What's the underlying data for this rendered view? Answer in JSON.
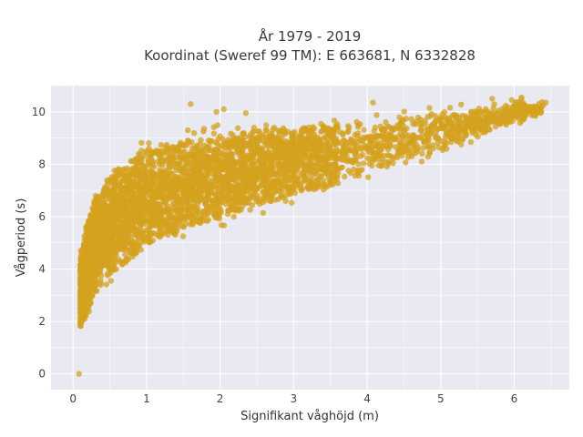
{
  "chart_data": {
    "type": "scatter",
    "title_line1": "År 1979 - 2019",
    "title_line2": "Koordinat (Sweref 99 TM): E 663681, N 6332828",
    "xlabel": "Signifikant våghöjd (m)",
    "ylabel": "Vågperiod (s)",
    "xlim": [
      -0.3,
      6.75
    ],
    "ylim": [
      -0.6,
      11.0
    ],
    "x_ticks": [
      0,
      1,
      2,
      3,
      4,
      5,
      6
    ],
    "y_ticks": [
      0,
      2,
      4,
      6,
      8,
      10
    ],
    "grid": true,
    "marker_color": "#D4A21E",
    "background_color": "#E9E9F1",
    "point_cloud_envelope": {
      "x": [
        0.1,
        0.2,
        0.3,
        0.5,
        0.75,
        1.0,
        1.5,
        2.0,
        2.5,
        3.0,
        3.5,
        4.0,
        4.5,
        5.0,
        5.5,
        6.0,
        6.4
      ],
      "y_lower": [
        1.2,
        1.8,
        2.4,
        3.0,
        3.6,
        4.1,
        4.8,
        5.3,
        5.8,
        6.3,
        6.7,
        7.2,
        7.7,
        8.2,
        8.7,
        9.3,
        9.8
      ],
      "y_upper": [
        5.0,
        6.5,
        7.4,
        8.2,
        8.8,
        9.3,
        9.6,
        9.8,
        9.9,
        9.9,
        10.0,
        10.2,
        10.3,
        10.4,
        10.5,
        10.6,
        10.5
      ]
    },
    "outlier_points": [
      {
        "x": 0.08,
        "y": 0.0
      },
      {
        "x": 1.6,
        "y": 10.3
      },
      {
        "x": 1.95,
        "y": 10.0
      },
      {
        "x": 2.05,
        "y": 10.1
      },
      {
        "x": 2.35,
        "y": 9.95
      },
      {
        "x": 4.08,
        "y": 10.35
      },
      {
        "x": 5.7,
        "y": 10.5
      },
      {
        "x": 6.1,
        "y": 10.55
      },
      {
        "x": 6.43,
        "y": 10.35
      },
      {
        "x": 5.85,
        "y": 9.8
      },
      {
        "x": 5.55,
        "y": 10.0
      }
    ]
  }
}
